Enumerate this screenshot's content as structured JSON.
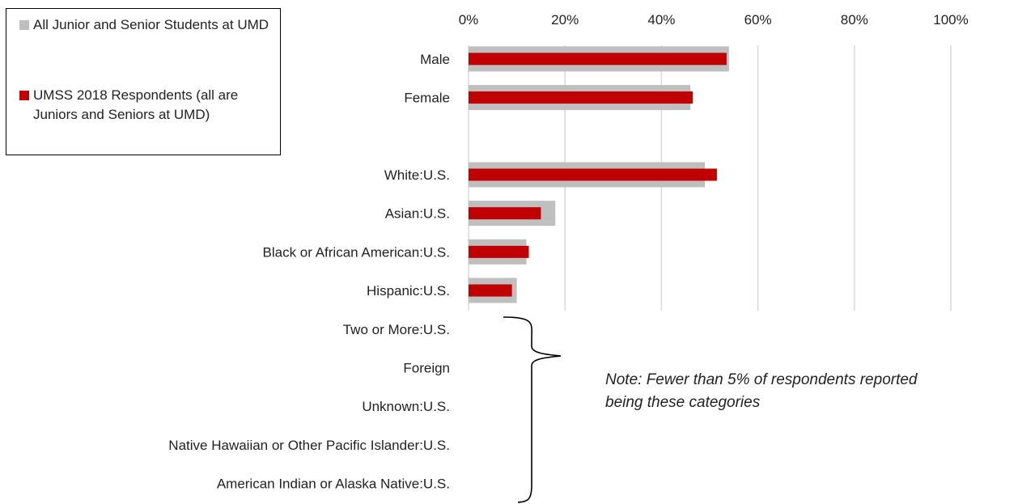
{
  "chart_data": {
    "type": "bar",
    "orientation": "horizontal",
    "categories": [
      "Male",
      "Female",
      "",
      "White:U.S.",
      "Asian:U.S.",
      "Black or African American:U.S.",
      "Hispanic:U.S.",
      "Two or More:U.S.",
      "Foreign",
      "Unknown:U.S.",
      "Native Hawaiian or Other Pacific Islander:U.S.",
      "American Indian or Alaska Native:U.S."
    ],
    "series": [
      {
        "name": "All Junior and Senior Students at UMD",
        "color": "#bfbfbf",
        "values": [
          54,
          46,
          null,
          49,
          18,
          12,
          10,
          null,
          null,
          null,
          null,
          null
        ]
      },
      {
        "name": "UMSS 2018 Respondents (all are Juniors and Seniors at UMD)",
        "color": "#c00000",
        "values": [
          53.5,
          46.5,
          null,
          51.5,
          15,
          12.5,
          9,
          null,
          null,
          null,
          null,
          null
        ]
      }
    ],
    "x_ticks": [
      "0%",
      "20%",
      "40%",
      "60%",
      "80%",
      "100%"
    ],
    "xlim": [
      0,
      100
    ],
    "grid": true,
    "legend_position": "top-left",
    "annotation": "Note: Fewer than 5% of respondents reported being these categories"
  }
}
